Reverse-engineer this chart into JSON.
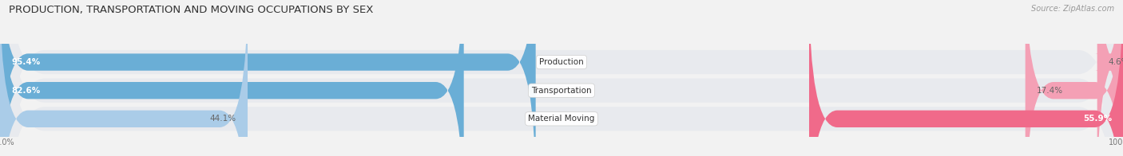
{
  "title": "PRODUCTION, TRANSPORTATION AND MOVING OCCUPATIONS BY SEX",
  "source": "Source: ZipAtlas.com",
  "categories": [
    "Production",
    "Transportation",
    "Material Moving"
  ],
  "male_values": [
    95.4,
    82.6,
    44.1
  ],
  "female_values": [
    4.6,
    17.4,
    55.9
  ],
  "male_colors": [
    "#6aaed6",
    "#6aaed6",
    "#aacce8"
  ],
  "female_colors": [
    "#f4a0b5",
    "#f4a0b5",
    "#f06a8a"
  ],
  "bg_color": "#f2f2f2",
  "bar_bg_color": "#e0e4ea",
  "row_bg_color": "#e8eaee",
  "title_fontsize": 9.5,
  "source_fontsize": 7,
  "label_fontsize": 7.5,
  "category_fontsize": 7.5,
  "axis_label_fontsize": 7
}
